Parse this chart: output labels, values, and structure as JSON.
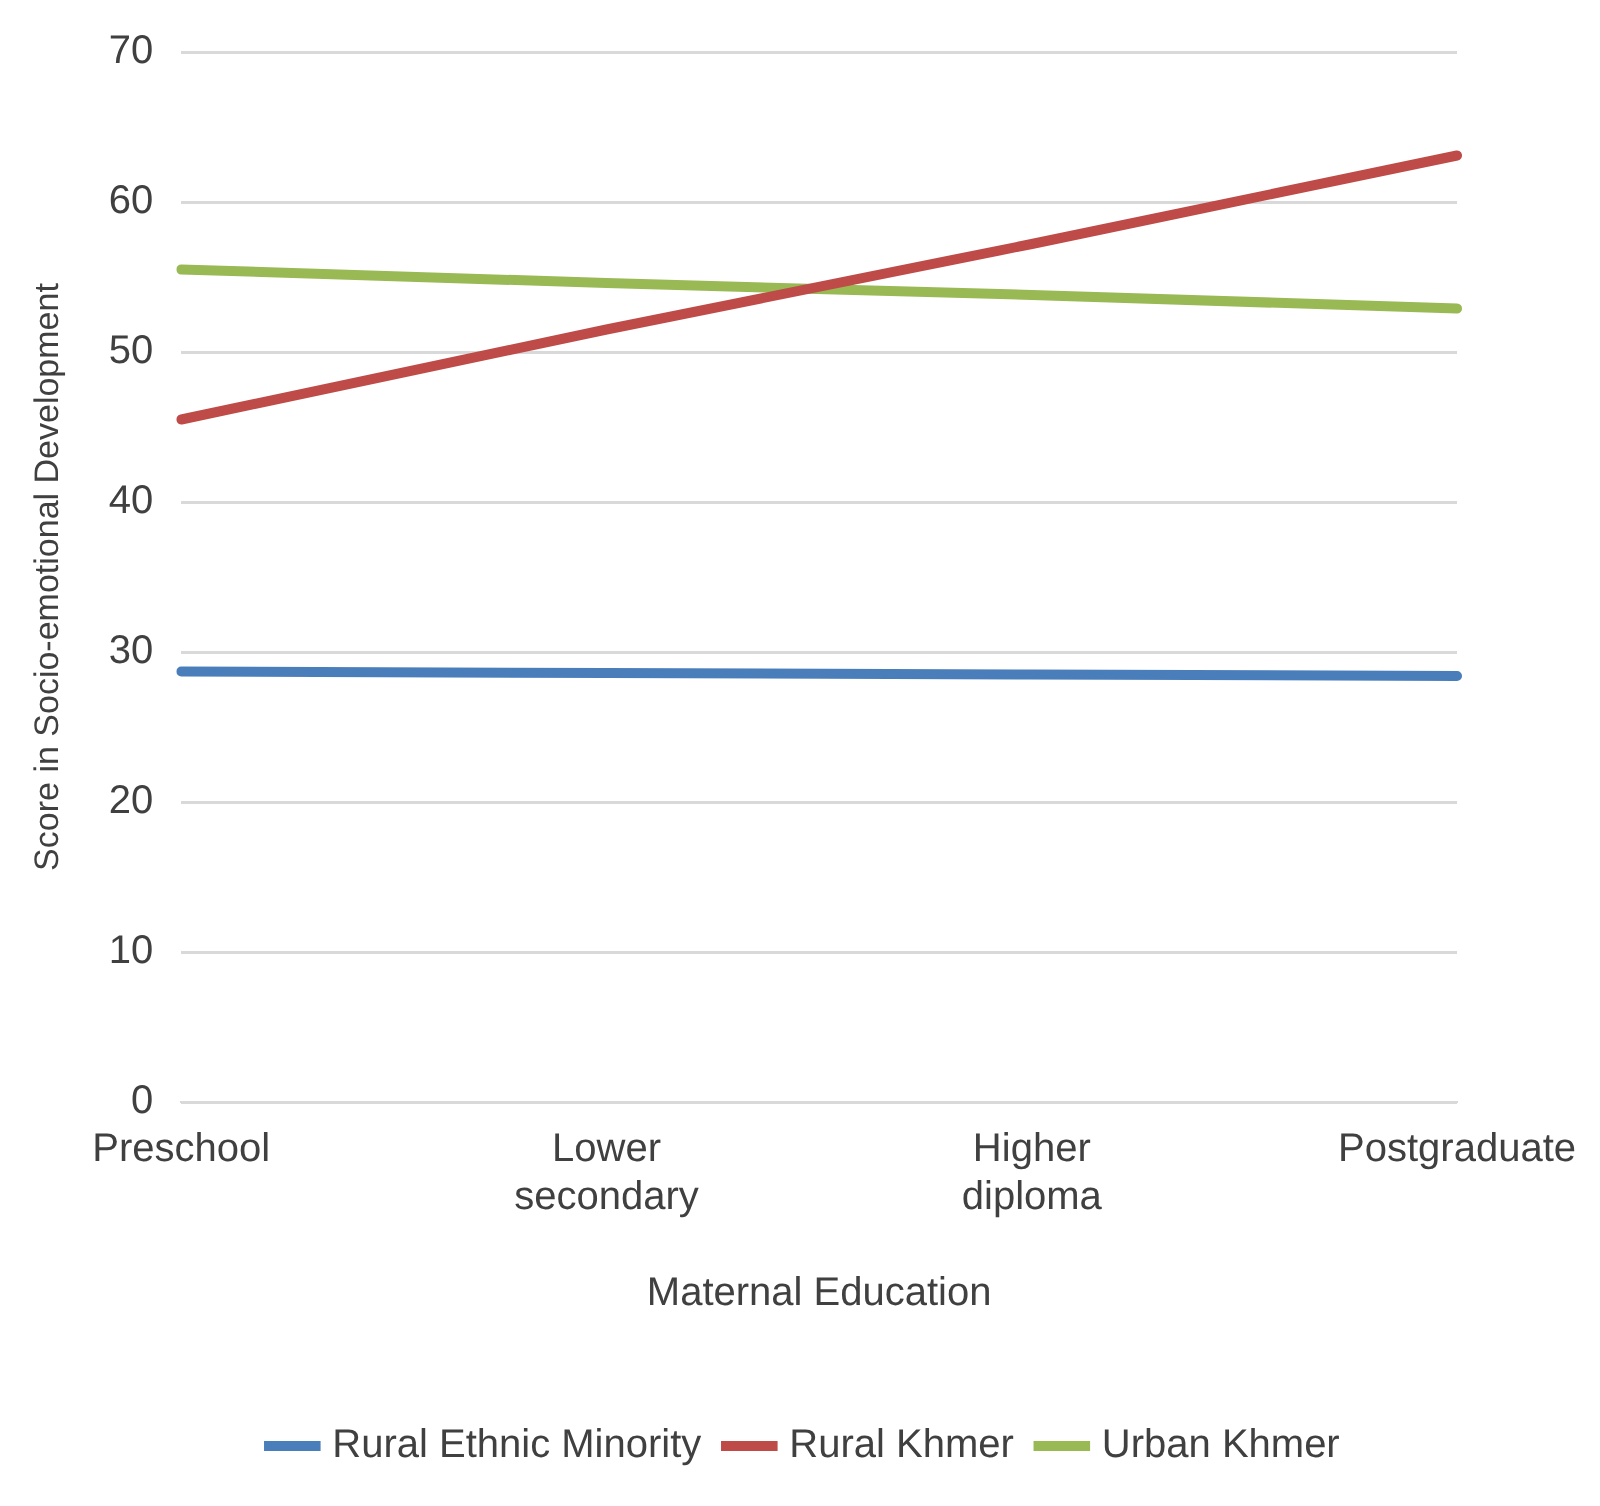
{
  "chart_data": {
    "type": "line",
    "xlabel": "Maternal Education",
    "ylabel": "Score in Socio-emotional Development",
    "categories": [
      "Preschool",
      "Lower secondary",
      "Higher diploma",
      "Postgraduate"
    ],
    "series": [
      {
        "name": "Rural Ethnic Minority",
        "color": "#4a7ebb",
        "values": [
          28.7,
          28.6,
          28.5,
          28.4
        ]
      },
      {
        "name": "Rural Khmer",
        "color": "#be4b48",
        "values": [
          45.5,
          51.5,
          57.2,
          63.1
        ]
      },
      {
        "name": "Urban Khmer",
        "color": "#98b954",
        "values": [
          55.5,
          54.6,
          53.8,
          52.9
        ]
      }
    ],
    "ylim": [
      0,
      70
    ],
    "yticks": [
      0,
      10,
      20,
      30,
      40,
      50,
      60,
      70
    ],
    "grid": "y",
    "legend": "bottom",
    "marker": "none",
    "line_style": "solid"
  }
}
